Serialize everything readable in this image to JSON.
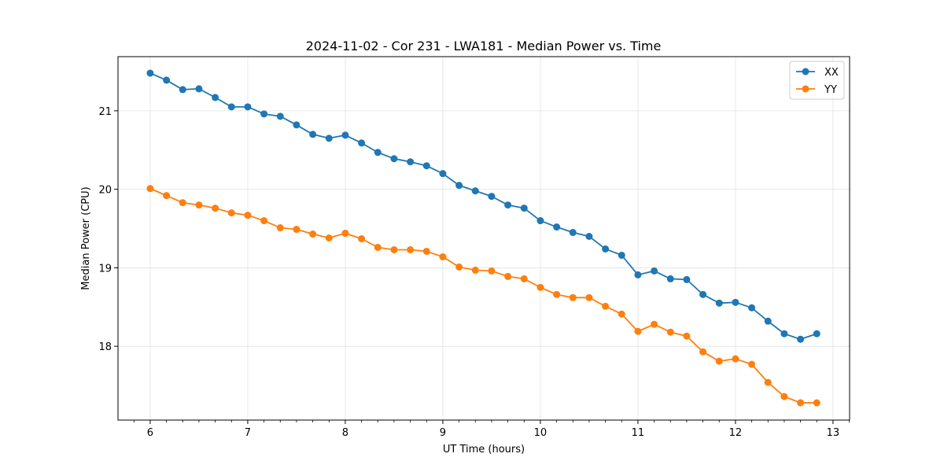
{
  "chart_data": {
    "type": "line",
    "title": "2024-11-02 - Cor 231 - LWA181 - Median Power vs. Time",
    "xlabel": "UT Time (hours)",
    "ylabel": "Median Power (CPU)",
    "xlim": [
      5.67,
      13.17
    ],
    "ylim": [
      17.06,
      21.69
    ],
    "xticks": [
      6,
      7,
      8,
      9,
      10,
      11,
      12,
      13
    ],
    "yticks": [
      18,
      19,
      20,
      21
    ],
    "grid": true,
    "legend_position": "top-right",
    "x": [
      6.0,
      6.1667,
      6.3333,
      6.5,
      6.6667,
      6.8333,
      7.0,
      7.1667,
      7.3333,
      7.5,
      7.6667,
      7.8333,
      8.0,
      8.1667,
      8.3333,
      8.5,
      8.6667,
      8.8333,
      9.0,
      9.1667,
      9.3333,
      9.5,
      9.6667,
      9.8333,
      10.0,
      10.1667,
      10.3333,
      10.5,
      10.6667,
      10.8333,
      11.0,
      11.1667,
      11.3333,
      11.5,
      11.6667,
      11.8333,
      12.0,
      12.1667,
      12.3333,
      12.5,
      12.6667,
      12.8333
    ],
    "series": [
      {
        "name": "XX",
        "color": "#1f77b4",
        "values": [
          21.48,
          21.39,
          21.27,
          21.28,
          21.17,
          21.05,
          21.05,
          20.96,
          20.93,
          20.82,
          20.7,
          20.65,
          20.69,
          20.59,
          20.47,
          20.39,
          20.35,
          20.3,
          20.2,
          20.05,
          19.98,
          19.91,
          19.8,
          19.76,
          19.6,
          19.52,
          19.45,
          19.4,
          19.24,
          19.16,
          18.91,
          18.96,
          18.86,
          18.85,
          18.66,
          18.55,
          18.56,
          18.49,
          18.32,
          18.16,
          18.09,
          18.16
        ]
      },
      {
        "name": "YY",
        "color": "#ff7f0e",
        "values": [
          20.01,
          19.92,
          19.83,
          19.8,
          19.76,
          19.7,
          19.67,
          19.6,
          19.51,
          19.49,
          19.43,
          19.38,
          19.44,
          19.37,
          19.26,
          19.23,
          19.23,
          19.21,
          19.14,
          19.01,
          18.97,
          18.96,
          18.89,
          18.86,
          18.75,
          18.66,
          18.62,
          18.62,
          18.51,
          18.41,
          18.19,
          18.28,
          18.18,
          18.13,
          17.93,
          17.81,
          17.84,
          17.77,
          17.54,
          17.36,
          17.28,
          17.28
        ]
      }
    ]
  }
}
